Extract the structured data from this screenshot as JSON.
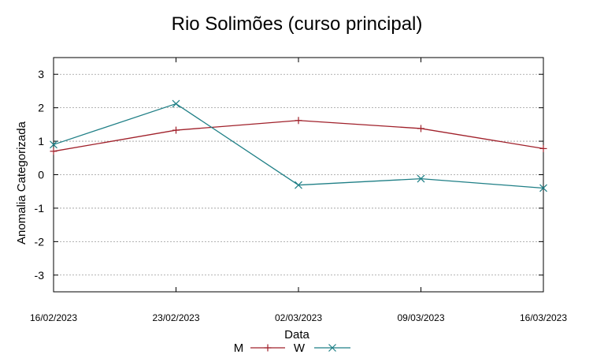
{
  "chart_data": {
    "type": "line",
    "title": "Rio Solimões (curso principal)",
    "xlabel": "Data",
    "ylabel": "Anomalia Categorizada",
    "x": [
      "16/02/2023",
      "23/02/2023",
      "02/03/2023",
      "09/03/2023",
      "16/03/2023"
    ],
    "ylim": [
      -3.5,
      3.5
    ],
    "yticks": [
      "3",
      "2",
      "1",
      "0",
      "-1",
      "-2",
      "-3"
    ],
    "grid": true,
    "legend": "bottom-center",
    "series": [
      {
        "name": "M",
        "color": "#a0202a",
        "marker": "plus",
        "values": [
          0.7,
          1.33,
          1.62,
          1.38,
          0.78
        ]
      },
      {
        "name": "W",
        "color": "#1f7f86",
        "marker": "cross",
        "values": [
          0.9,
          2.12,
          -0.31,
          -0.12,
          -0.4
        ]
      }
    ]
  }
}
